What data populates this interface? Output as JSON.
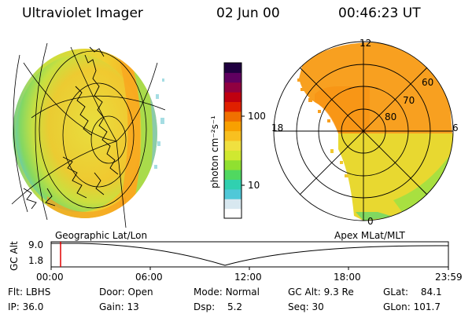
{
  "header": {
    "instrument": "Ultraviolet Imager",
    "date": "02 Jun 00",
    "time": "00:46:23 UT"
  },
  "colorbar": {
    "unit_label": "photon cm⁻²s⁻¹",
    "ticks": [
      "100",
      "10"
    ],
    "colors": [
      "#ffffff",
      "#d8e8f0",
      "#50c8d8",
      "#30d0b0",
      "#50d860",
      "#90e030",
      "#d0e830",
      "#f0e040",
      "#f8c020",
      "#f8a000",
      "#f07000",
      "#e02000",
      "#c00010",
      "#900040",
      "#600060",
      "#200040"
    ]
  },
  "left_panel": {
    "label": "Geographic Lat/Lon"
  },
  "right_panel": {
    "label": "Apex MLat/MLT",
    "mlt_labels": {
      "top": "12",
      "left": "18",
      "right": "6",
      "bottom": "0"
    },
    "lat_labels": [
      "60",
      "70",
      "80"
    ]
  },
  "altitude_plot": {
    "ylabel": "GC Alt",
    "y_ticks": [
      "9.0",
      "1.8"
    ],
    "x_ticks": [
      "00:00",
      "06:00",
      "12:00",
      "18:00",
      "23:59"
    ],
    "marker_color": "#e00000"
  },
  "status": {
    "row1": [
      {
        "label": "Flt:",
        "value": "LBHS"
      },
      {
        "label": "Door:",
        "value": "Open"
      },
      {
        "label": "Mode:",
        "value": "Normal"
      },
      {
        "label": "GC Alt:",
        "value": "9.3 Re"
      },
      {
        "label": "GLat:",
        "value": "84.1"
      }
    ],
    "row2": [
      {
        "label": "IP:",
        "value": "36.0"
      },
      {
        "label": "Gain:",
        "value": "13"
      },
      {
        "label": "Dsp:",
        "value": "5.2"
      },
      {
        "label": "Seq:",
        "value": "30"
      },
      {
        "label": "GLon:",
        "value": "101.7"
      }
    ]
  }
}
